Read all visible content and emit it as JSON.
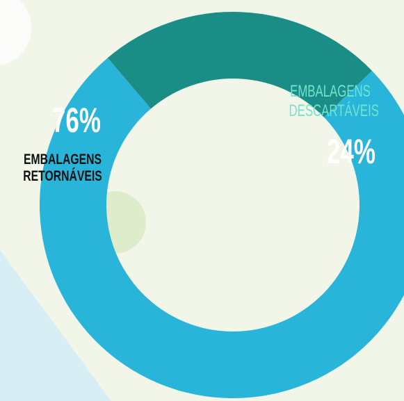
{
  "chart_data": {
    "type": "pie",
    "donut": true,
    "categories": [
      "EMBALAGENS RETORNÁVEIS",
      "EMBALAGENS DESCARTÁVEIS"
    ],
    "values": [
      76,
      24
    ],
    "value_labels": [
      "76%",
      "24%"
    ],
    "colors": [
      "#29b5d9",
      "#1a8e86"
    ]
  }
}
